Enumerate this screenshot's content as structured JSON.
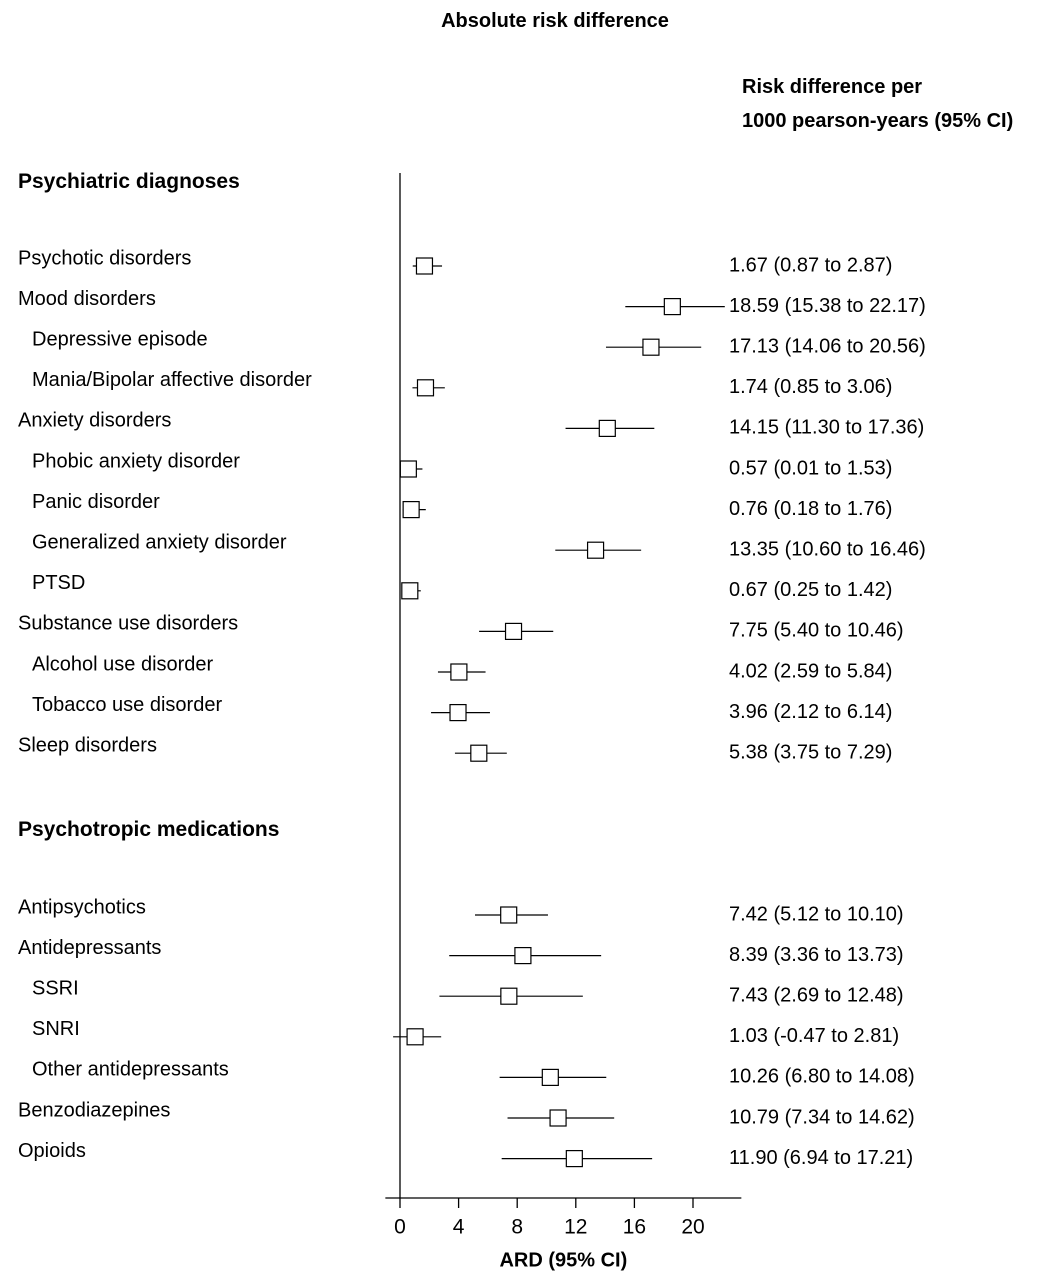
{
  "chart_data": {
    "type": "forest",
    "title": "Absolute risk difference",
    "estimate_column_header": [
      "Risk difference per",
      "1000 pearson-years (95% CI)"
    ],
    "xlabel": "ARD (95% CI)",
    "xlim": [
      -1,
      23.3
    ],
    "xticks": [
      0,
      4,
      8,
      12,
      16,
      20
    ],
    "grid": false,
    "sections": [
      {
        "title": "Psychiatric diagnoses",
        "rows": [
          {
            "label": "Psychotic disorders",
            "indent": 0,
            "est": 1.67,
            "lo": 0.87,
            "hi": 2.87,
            "text": "1.67 (0.87 to 2.87)"
          },
          {
            "label": "Mood disorders",
            "indent": 0,
            "est": 18.59,
            "lo": 15.38,
            "hi": 22.17,
            "text": "18.59 (15.38 to 22.17)"
          },
          {
            "label": "Depressive episode",
            "indent": 1,
            "est": 17.13,
            "lo": 14.06,
            "hi": 20.56,
            "text": "17.13 (14.06 to 20.56)"
          },
          {
            "label": "Mania/Bipolar affective disorder",
            "indent": 1,
            "est": 1.74,
            "lo": 0.85,
            "hi": 3.06,
            "text": "1.74 (0.85 to 3.06)"
          },
          {
            "label": "Anxiety disorders",
            "indent": 0,
            "est": 14.15,
            "lo": 11.3,
            "hi": 17.36,
            "text": "14.15 (11.30 to 17.36)"
          },
          {
            "label": "Phobic anxiety disorder",
            "indent": 1,
            "est": 0.57,
            "lo": 0.01,
            "hi": 1.53,
            "text": "0.57 (0.01 to 1.53)"
          },
          {
            "label": "Panic disorder",
            "indent": 1,
            "est": 0.76,
            "lo": 0.18,
            "hi": 1.76,
            "text": "0.76 (0.18 to 1.76)"
          },
          {
            "label": "Generalized anxiety disorder",
            "indent": 1,
            "est": 13.35,
            "lo": 10.6,
            "hi": 16.46,
            "text": "13.35 (10.60 to 16.46)"
          },
          {
            "label": "PTSD",
            "indent": 1,
            "est": 0.67,
            "lo": 0.25,
            "hi": 1.42,
            "text": "0.67 (0.25 to 1.42)"
          },
          {
            "label": "Substance use disorders",
            "indent": 0,
            "est": 7.75,
            "lo": 5.4,
            "hi": 10.46,
            "text": "7.75 (5.40 to 10.46)"
          },
          {
            "label": "Alcohol use disorder",
            "indent": 1,
            "est": 4.02,
            "lo": 2.59,
            "hi": 5.84,
            "text": "4.02 (2.59 to 5.84)"
          },
          {
            "label": "Tobacco use disorder",
            "indent": 1,
            "est": 3.96,
            "lo": 2.12,
            "hi": 6.14,
            "text": "3.96 (2.12 to 6.14)"
          },
          {
            "label": "Sleep disorders",
            "indent": 0,
            "est": 5.38,
            "lo": 3.75,
            "hi": 7.29,
            "text": "5.38 (3.75 to 7.29)"
          }
        ]
      },
      {
        "title": "Psychotropic medications",
        "rows": [
          {
            "label": "Antipsychotics",
            "indent": 0,
            "est": 7.42,
            "lo": 5.12,
            "hi": 10.1,
            "text": "7.42 (5.12 to 10.10)"
          },
          {
            "label": "Antidepressants",
            "indent": 0,
            "est": 8.39,
            "lo": 3.36,
            "hi": 13.73,
            "text": "8.39 (3.36 to 13.73)"
          },
          {
            "label": "SSRI",
            "indent": 1,
            "est": 7.43,
            "lo": 2.69,
            "hi": 12.48,
            "text": "7.43 (2.69 to 12.48)"
          },
          {
            "label": "SNRI",
            "indent": 1,
            "est": 1.03,
            "lo": -0.47,
            "hi": 2.81,
            "text": "1.03 (-0.47 to 2.81)"
          },
          {
            "label": "Other antidepressants",
            "indent": 1,
            "est": 10.26,
            "lo": 6.8,
            "hi": 14.08,
            "text": "10.26 (6.80 to 14.08)"
          },
          {
            "label": "Benzodiazepines",
            "indent": 0,
            "est": 10.79,
            "lo": 7.34,
            "hi": 14.62,
            "text": "10.79 (7.34 to 14.62)"
          },
          {
            "label": "Opioids",
            "indent": 0,
            "est": 11.9,
            "lo": 6.94,
            "hi": 17.21,
            "text": "11.90 (6.94 to 17.21)"
          }
        ]
      }
    ]
  }
}
